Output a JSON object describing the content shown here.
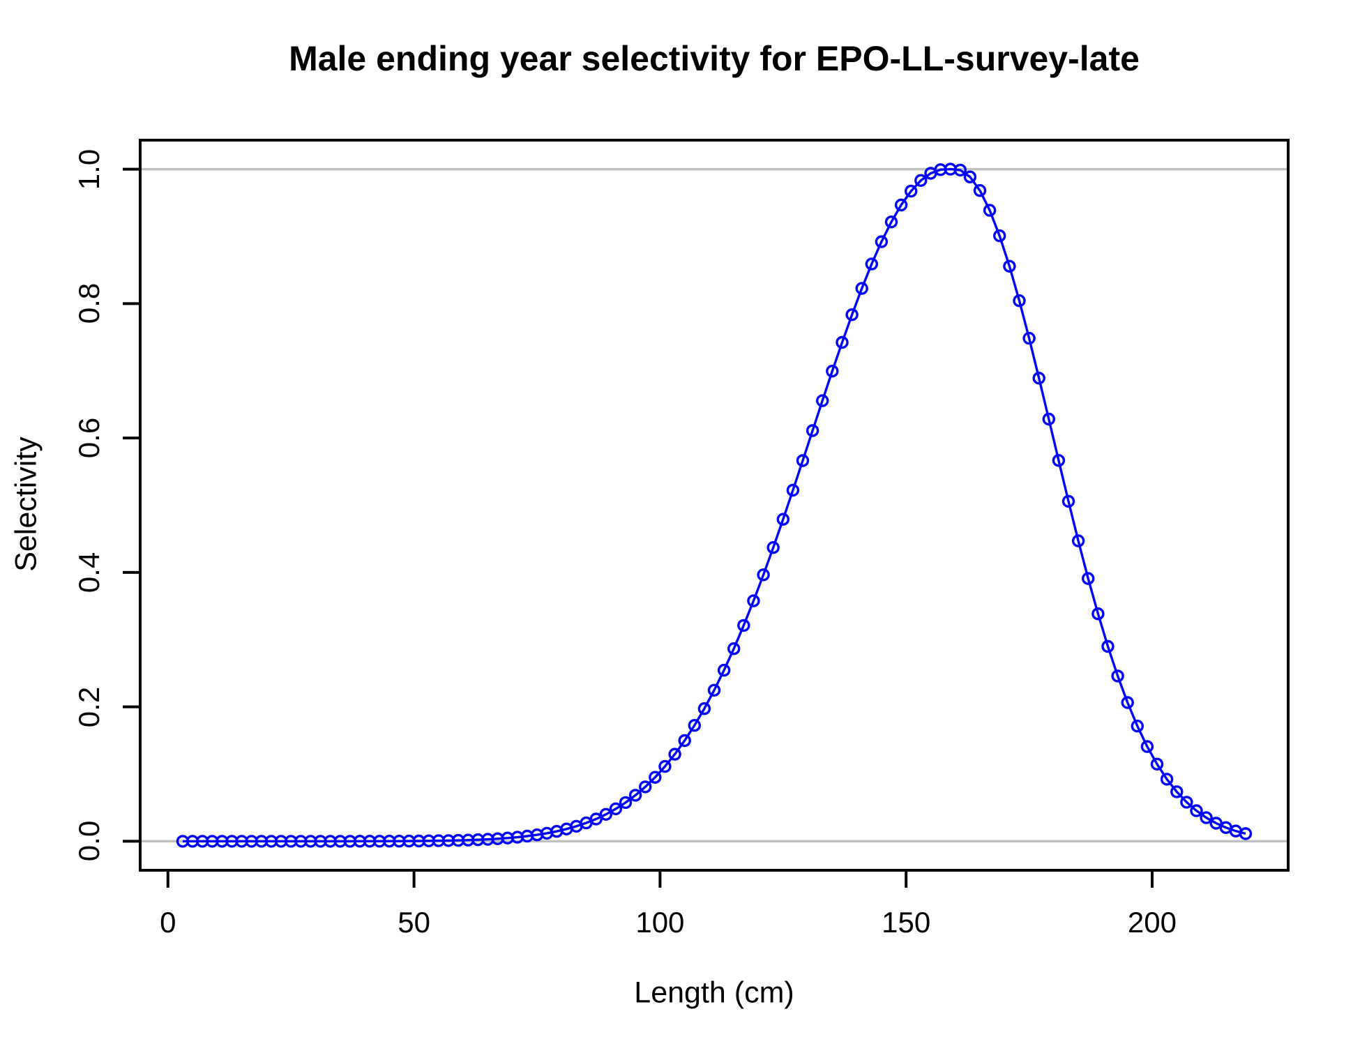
{
  "chart_data": {
    "type": "line",
    "title": "Male ending year selectivity for EPO-LL-survey-late",
    "xlabel": "Length (cm)",
    "ylabel": "Selectivity",
    "xlim": [
      -5.64,
      227.64
    ],
    "ylim": [
      -0.0432,
      1.0432
    ],
    "x_ticks": [
      0,
      50,
      100,
      150,
      200
    ],
    "y_ticks": [
      "0.0",
      "0.2",
      "0.4",
      "0.6",
      "0.8",
      "1.0"
    ],
    "grid_lines_y": [
      0.0,
      1.0
    ],
    "grid_on": true,
    "legend": "none",
    "marker": "open-circle",
    "colors": {
      "series": "#0000FF",
      "grid": "#C0C0C0",
      "axis": "#000000",
      "background": "#FFFFFF"
    },
    "series": [
      {
        "name": "male-ending-year-selectivity",
        "x": [
          3,
          5,
          7,
          9,
          11,
          13,
          15,
          17,
          19,
          21,
          23,
          25,
          27,
          29,
          31,
          33,
          35,
          37,
          39,
          41,
          43,
          45,
          47,
          49,
          51,
          53,
          55,
          57,
          59,
          61,
          63,
          65,
          67,
          69,
          71,
          73,
          75,
          77,
          79,
          81,
          83,
          85,
          87,
          89,
          91,
          93,
          95,
          97,
          99,
          101,
          103,
          105,
          107,
          109,
          111,
          113,
          115,
          117,
          119,
          121,
          123,
          125,
          127,
          129,
          131,
          133,
          135,
          137,
          139,
          141,
          143,
          145,
          147,
          149,
          151,
          153,
          155,
          157,
          159,
          161,
          163,
          165,
          167,
          169,
          171,
          173,
          175,
          177,
          179,
          181,
          183,
          185,
          187,
          189,
          191,
          193,
          195,
          197,
          199,
          201,
          203,
          205,
          207,
          209,
          211,
          213,
          215,
          217,
          219
        ],
        "y": [
          0.0,
          0.0,
          0.0,
          0.0,
          0.0,
          0.0,
          0.0,
          0.0,
          0.0,
          0.0,
          0.0,
          0.0,
          0.0,
          0.0,
          0.0,
          0.0,
          0.0,
          0.0,
          0.0001,
          0.0001,
          0.0001,
          0.0002,
          0.0002,
          0.0003,
          0.0004,
          0.0006,
          0.0008,
          0.001,
          0.0013,
          0.0017,
          0.0022,
          0.0029,
          0.0037,
          0.0047,
          0.006,
          0.0076,
          0.0095,
          0.0119,
          0.0147,
          0.0182,
          0.0223,
          0.0273,
          0.0331,
          0.04,
          0.0482,
          0.0576,
          0.0684,
          0.0809,
          0.0951,
          0.1113,
          0.1295,
          0.1498,
          0.1724,
          0.1973,
          0.2247,
          0.2545,
          0.2866,
          0.3211,
          0.3577,
          0.3964,
          0.437,
          0.479,
          0.5223,
          0.5664,
          0.611,
          0.6555,
          0.6995,
          0.7423,
          0.7835,
          0.8226,
          0.8589,
          0.8921,
          0.9215,
          0.9467,
          0.9674,
          0.9832,
          0.9939,
          0.9993,
          1.0,
          0.9987,
          0.9885,
          0.9683,
          0.9388,
          0.9009,
          0.8556,
          0.8043,
          0.7484,
          0.6891,
          0.6281,
          0.5666,
          0.5058,
          0.447,
          0.3909,
          0.3384,
          0.2899,
          0.2459,
          0.2063,
          0.1714,
          0.1409,
          0.1147,
          0.0923,
          0.0736,
          0.0581,
          0.0454,
          0.035,
          0.0268,
          0.0203,
          0.0152,
          0.0113
        ]
      }
    ]
  }
}
